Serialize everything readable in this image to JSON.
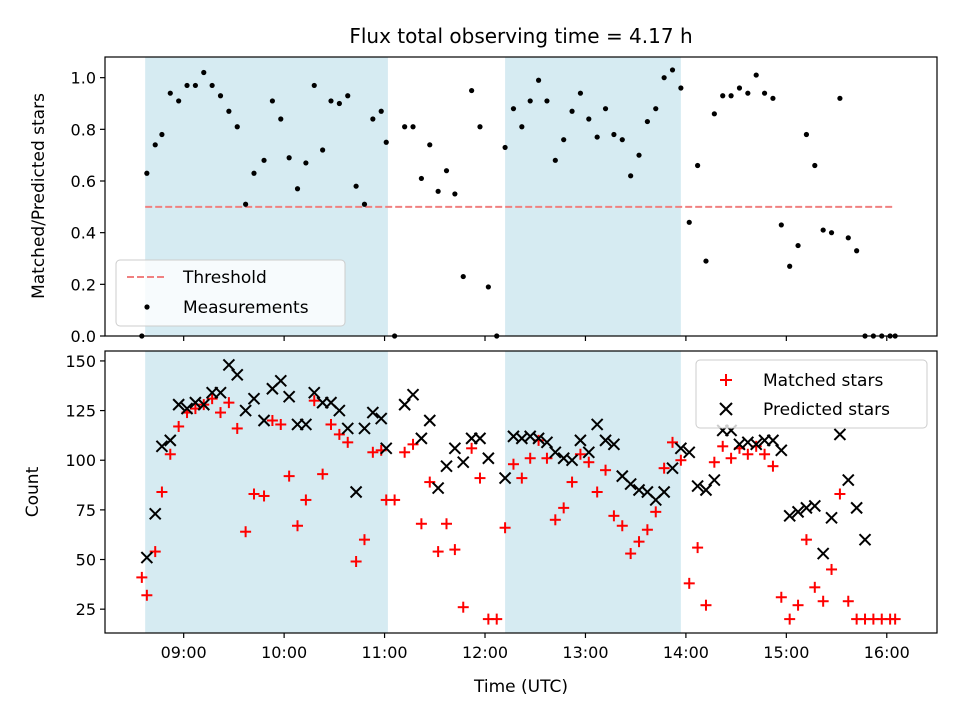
{
  "chart_data": [
    {
      "type": "scatter",
      "title": "Flux total observing time = 4.17 h",
      "xlabel": "",
      "ylabel": "Matched/Predicted stars",
      "ylim": [
        0,
        1.08
      ],
      "yticks": [
        0.0,
        0.2,
        0.4,
        0.6,
        0.8,
        1.0
      ],
      "ytick_labels": [
        "0.0",
        "0.2",
        "0.4",
        "0.6",
        "0.8",
        "1.0"
      ],
      "xlim": [
        "08:13",
        "16:30"
      ],
      "xticks": [
        "09:00",
        "10:00",
        "11:00",
        "12:00",
        "13:00",
        "14:00",
        "15:00",
        "16:00"
      ],
      "grid": false,
      "legend_placement": "lower-left",
      "shaded_intervals": [
        [
          "08:37",
          "11:02"
        ],
        [
          "12:12",
          "13:57"
        ]
      ],
      "threshold": {
        "name": "Threshold",
        "value": 0.5,
        "x_range": [
          "08:37",
          "16:05"
        ],
        "color": "#f08080"
      },
      "series": [
        {
          "name": "Measurements",
          "color": "#000000",
          "x": [
            "08:35",
            "08:38",
            "08:43",
            "08:47",
            "08:52",
            "08:57",
            "09:02",
            "09:07",
            "09:12",
            "09:17",
            "09:22",
            "09:27",
            "09:32",
            "09:37",
            "09:42",
            "09:48",
            "09:53",
            "09:58",
            "10:03",
            "10:08",
            "10:13",
            "10:18",
            "10:23",
            "10:28",
            "10:33",
            "10:38",
            "10:43",
            "10:48",
            "10:53",
            "10:58",
            "11:01",
            "11:06",
            "11:12",
            "11:17",
            "11:22",
            "11:27",
            "11:32",
            "11:37",
            "11:42",
            "11:47",
            "11:52",
            "11:57",
            "12:02",
            "12:07",
            "12:12",
            "12:17",
            "12:22",
            "12:27",
            "12:32",
            "12:37",
            "12:42",
            "12:47",
            "12:52",
            "12:57",
            "13:02",
            "13:07",
            "13:12",
            "13:17",
            "13:22",
            "13:27",
            "13:32",
            "13:37",
            "13:42",
            "13:47",
            "13:52",
            "13:57",
            "14:02",
            "14:07",
            "14:12",
            "14:17",
            "14:22",
            "14:27",
            "14:32",
            "14:37",
            "14:42",
            "14:47",
            "14:52",
            "14:57",
            "15:02",
            "15:07",
            "15:12",
            "15:17",
            "15:22",
            "15:27",
            "15:32",
            "15:37",
            "15:42",
            "15:47",
            "15:52",
            "15:57",
            "16:02",
            "16:05"
          ],
          "y": [
            0.0,
            0.63,
            0.74,
            0.78,
            0.94,
            0.91,
            0.97,
            0.97,
            1.02,
            0.97,
            0.93,
            0.87,
            0.81,
            0.51,
            0.63,
            0.68,
            0.91,
            0.84,
            0.69,
            0.57,
            0.67,
            0.97,
            0.72,
            0.91,
            0.9,
            0.93,
            0.58,
            0.51,
            0.84,
            0.87,
            0.75,
            0.0,
            0.81,
            0.81,
            0.61,
            0.74,
            0.56,
            0.64,
            0.55,
            0.23,
            0.95,
            0.81,
            0.19,
            0.0,
            0.73,
            0.88,
            0.81,
            0.91,
            0.99,
            0.91,
            0.68,
            0.76,
            0.87,
            0.94,
            0.84,
            0.77,
            0.88,
            0.78,
            0.76,
            0.62,
            0.7,
            0.83,
            0.88,
            1.0,
            1.03,
            0.96,
            0.44,
            0.66,
            0.29,
            0.86,
            0.93,
            0.93,
            0.96,
            0.94,
            1.01,
            0.94,
            0.92,
            0.43,
            0.27,
            0.35,
            0.78,
            0.66,
            0.41,
            0.4,
            0.92,
            0.38,
            0.33,
            0.0,
            0.0,
            0.0,
            0.0,
            0.0
          ]
        }
      ]
    },
    {
      "type": "scatter",
      "title": "",
      "xlabel": "Time (UTC)",
      "ylabel": "Count",
      "ylim": [
        13,
        155
      ],
      "yticks": [
        25,
        50,
        75,
        100,
        125,
        150
      ],
      "ytick_labels": [
        "25",
        "50",
        "75",
        "100",
        "125",
        "150"
      ],
      "xlim": [
        "08:13",
        "16:30"
      ],
      "xticks": [
        "09:00",
        "10:00",
        "11:00",
        "12:00",
        "13:00",
        "14:00",
        "15:00",
        "16:00"
      ],
      "grid": false,
      "legend_placement": "upper-right",
      "shaded_intervals": [
        [
          "08:37",
          "11:02"
        ],
        [
          "12:12",
          "13:57"
        ]
      ],
      "series": [
        {
          "name": "Matched stars",
          "color": "#ff0000",
          "marker": "plus",
          "x": [
            "08:35",
            "08:38",
            "08:43",
            "08:47",
            "08:52",
            "08:57",
            "09:02",
            "09:07",
            "09:12",
            "09:17",
            "09:22",
            "09:27",
            "09:32",
            "09:37",
            "09:42",
            "09:48",
            "09:53",
            "09:58",
            "10:03",
            "10:08",
            "10:13",
            "10:18",
            "10:23",
            "10:28",
            "10:33",
            "10:38",
            "10:43",
            "10:48",
            "10:53",
            "10:58",
            "11:01",
            "11:06",
            "11:12",
            "11:17",
            "11:22",
            "11:27",
            "11:32",
            "11:37",
            "11:42",
            "11:47",
            "11:52",
            "11:57",
            "12:02",
            "12:07",
            "12:12",
            "12:17",
            "12:22",
            "12:27",
            "12:32",
            "12:37",
            "12:42",
            "12:47",
            "12:52",
            "12:57",
            "13:02",
            "13:07",
            "13:12",
            "13:17",
            "13:22",
            "13:27",
            "13:32",
            "13:37",
            "13:42",
            "13:47",
            "13:52",
            "13:57",
            "14:02",
            "14:07",
            "14:12",
            "14:17",
            "14:22",
            "14:27",
            "14:32",
            "14:37",
            "14:42",
            "14:47",
            "14:52",
            "14:57",
            "15:02",
            "15:07",
            "15:12",
            "15:17",
            "15:22",
            "15:27",
            "15:32",
            "15:37",
            "15:42",
            "15:47",
            "15:52",
            "15:57",
            "16:02",
            "16:05"
          ],
          "y": [
            41,
            32,
            54,
            84,
            103,
            117,
            124,
            126,
            128,
            131,
            124,
            129,
            116,
            64,
            83,
            82,
            120,
            118,
            92,
            67,
            80,
            130,
            93,
            118,
            113,
            109,
            49,
            60,
            104,
            105,
            80,
            80,
            104,
            108,
            68,
            89,
            54,
            68,
            55,
            26,
            106,
            91,
            20,
            20,
            66,
            98,
            91,
            101,
            110,
            101,
            70,
            76,
            89,
            103,
            99,
            84,
            95,
            72,
            67,
            53,
            59,
            65,
            74,
            96,
            109,
            100,
            38,
            56,
            27,
            99,
            107,
            101,
            106,
            103,
            107,
            103,
            97,
            31,
            20,
            27,
            60,
            36,
            29,
            45,
            83,
            29,
            20,
            20,
            20,
            20,
            20,
            20
          ]
        },
        {
          "name": "Predicted stars",
          "color": "#000000",
          "marker": "x",
          "x": [
            "08:38",
            "08:43",
            "08:47",
            "08:52",
            "08:57",
            "09:02",
            "09:07",
            "09:12",
            "09:17",
            "09:22",
            "09:27",
            "09:32",
            "09:37",
            "09:42",
            "09:48",
            "09:53",
            "09:58",
            "10:03",
            "10:08",
            "10:13",
            "10:18",
            "10:23",
            "10:28",
            "10:33",
            "10:38",
            "10:43",
            "10:48",
            "10:53",
            "10:58",
            "11:01",
            "11:12",
            "11:17",
            "11:22",
            "11:27",
            "11:32",
            "11:37",
            "11:42",
            "11:47",
            "11:52",
            "11:57",
            "12:02",
            "12:12",
            "12:17",
            "12:22",
            "12:27",
            "12:32",
            "12:37",
            "12:42",
            "12:47",
            "12:52",
            "12:57",
            "13:02",
            "13:07",
            "13:12",
            "13:17",
            "13:22",
            "13:27",
            "13:32",
            "13:37",
            "13:42",
            "13:47",
            "13:52",
            "13:57",
            "14:02",
            "14:07",
            "14:12",
            "14:17",
            "14:22",
            "14:27",
            "14:32",
            "14:37",
            "14:42",
            "14:47",
            "14:52",
            "14:57",
            "15:02",
            "15:07",
            "15:12",
            "15:17",
            "15:22",
            "15:27",
            "15:32",
            "15:37",
            "15:42",
            "15:47"
          ],
          "y": [
            51,
            73,
            107,
            110,
            128,
            126,
            129,
            128,
            134,
            134,
            148,
            143,
            125,
            131,
            120,
            136,
            140,
            132,
            118,
            118,
            134,
            129,
            129,
            125,
            116,
            84,
            116,
            124,
            121,
            106,
            128,
            133,
            111,
            120,
            86,
            97,
            106,
            99,
            111,
            111,
            101,
            91,
            112,
            111,
            112,
            111,
            109,
            104,
            101,
            100,
            110,
            104,
            118,
            110,
            108,
            92,
            88,
            85,
            84,
            80,
            84,
            96,
            106,
            104,
            87,
            85,
            90,
            115,
            115,
            108,
            109,
            108,
            110,
            110,
            105,
            72,
            74,
            76,
            77,
            53,
            71,
            113,
            90,
            76,
            60
          ]
        }
      ]
    }
  ]
}
